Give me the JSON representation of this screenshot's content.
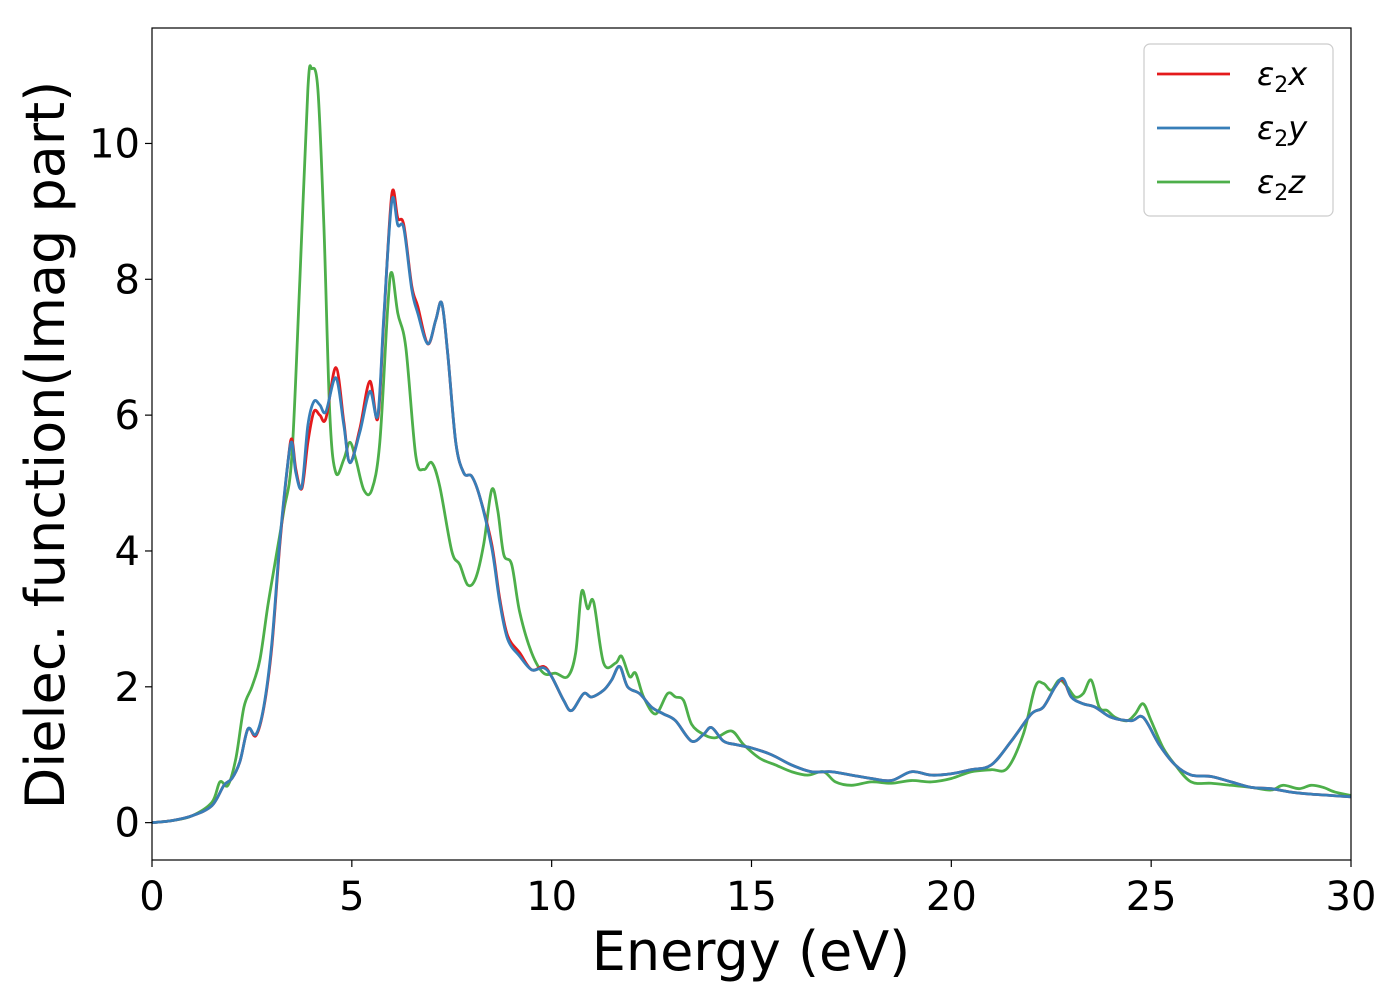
{
  "chart_data": {
    "type": "line",
    "title": "",
    "xlabel": "Energy (eV)",
    "ylabel": "Dielec. function(Imag part)",
    "xlim": [
      0,
      30
    ],
    "ylim": [
      -0.55,
      11.7
    ],
    "grid": false,
    "legend_position": "top-right",
    "x_ticks": [
      0,
      5,
      10,
      15,
      20,
      25,
      30
    ],
    "y_ticks": [
      0,
      2,
      4,
      6,
      8,
      10
    ],
    "series": [
      {
        "name": "ε₂x",
        "legend_main": "ε",
        "legend_sub": "2",
        "legend_tail": "x",
        "color": "#e41a1c",
        "points": [
          [
            0,
            0
          ],
          [
            0.5,
            0.03
          ],
          [
            1.0,
            0.1
          ],
          [
            1.5,
            0.25
          ],
          [
            1.8,
            0.55
          ],
          [
            2.0,
            0.65
          ],
          [
            2.2,
            0.9
          ],
          [
            2.4,
            1.38
          ],
          [
            2.6,
            1.28
          ],
          [
            2.8,
            1.7
          ],
          [
            3.0,
            2.6
          ],
          [
            3.2,
            4.1
          ],
          [
            3.4,
            5.3
          ],
          [
            3.5,
            5.65
          ],
          [
            3.6,
            5.2
          ],
          [
            3.75,
            4.92
          ],
          [
            3.9,
            5.6
          ],
          [
            4.05,
            6.05
          ],
          [
            4.2,
            6.0
          ],
          [
            4.35,
            5.95
          ],
          [
            4.6,
            6.7
          ],
          [
            4.8,
            5.9
          ],
          [
            4.95,
            5.3
          ],
          [
            5.2,
            5.8
          ],
          [
            5.45,
            6.5
          ],
          [
            5.65,
            5.95
          ],
          [
            5.8,
            7.4
          ],
          [
            6.0,
            9.25
          ],
          [
            6.15,
            8.9
          ],
          [
            6.3,
            8.8
          ],
          [
            6.5,
            7.9
          ],
          [
            6.65,
            7.6
          ],
          [
            6.9,
            7.05
          ],
          [
            7.1,
            7.4
          ],
          [
            7.25,
            7.65
          ],
          [
            7.4,
            6.9
          ],
          [
            7.6,
            5.6
          ],
          [
            7.8,
            5.15
          ],
          [
            8.0,
            5.1
          ],
          [
            8.2,
            4.8
          ],
          [
            8.5,
            4.1
          ],
          [
            8.7,
            3.3
          ],
          [
            8.9,
            2.75
          ],
          [
            9.2,
            2.5
          ],
          [
            9.5,
            2.25
          ],
          [
            9.8,
            2.3
          ],
          [
            10.0,
            2.15
          ],
          [
            10.3,
            1.8
          ],
          [
            10.5,
            1.65
          ],
          [
            10.8,
            1.9
          ],
          [
            11.0,
            1.85
          ],
          [
            11.3,
            1.95
          ],
          [
            11.5,
            2.1
          ],
          [
            11.7,
            2.3
          ],
          [
            11.9,
            2.0
          ],
          [
            12.2,
            1.9
          ],
          [
            12.5,
            1.7
          ],
          [
            12.8,
            1.6
          ],
          [
            13.1,
            1.5
          ],
          [
            13.5,
            1.2
          ],
          [
            13.8,
            1.3
          ],
          [
            14.0,
            1.4
          ],
          [
            14.3,
            1.2
          ],
          [
            14.6,
            1.15
          ],
          [
            15.0,
            1.1
          ],
          [
            15.5,
            1.0
          ],
          [
            16.0,
            0.85
          ],
          [
            16.5,
            0.75
          ],
          [
            17.0,
            0.75
          ],
          [
            17.5,
            0.7
          ],
          [
            18.0,
            0.65
          ],
          [
            18.5,
            0.62
          ],
          [
            19.0,
            0.75
          ],
          [
            19.5,
            0.7
          ],
          [
            20.0,
            0.72
          ],
          [
            20.5,
            0.78
          ],
          [
            21.0,
            0.85
          ],
          [
            21.5,
            1.2
          ],
          [
            22.0,
            1.6
          ],
          [
            22.3,
            1.7
          ],
          [
            22.6,
            2.0
          ],
          [
            22.8,
            2.1
          ],
          [
            23.0,
            1.85
          ],
          [
            23.3,
            1.75
          ],
          [
            23.6,
            1.7
          ],
          [
            24.0,
            1.55
          ],
          [
            24.5,
            1.5
          ],
          [
            24.8,
            1.55
          ],
          [
            25.2,
            1.15
          ],
          [
            25.6,
            0.85
          ],
          [
            26.0,
            0.7
          ],
          [
            26.5,
            0.68
          ],
          [
            27.0,
            0.6
          ],
          [
            27.5,
            0.52
          ],
          [
            28.0,
            0.5
          ],
          [
            28.5,
            0.45
          ],
          [
            29.0,
            0.42
          ],
          [
            29.5,
            0.4
          ],
          [
            30.0,
            0.38
          ]
        ]
      },
      {
        "name": "ε₂y",
        "legend_main": "ε",
        "legend_sub": "2",
        "legend_tail": "y",
        "color": "#377eb8",
        "points": [
          [
            0,
            0
          ],
          [
            0.5,
            0.03
          ],
          [
            1.0,
            0.1
          ],
          [
            1.5,
            0.25
          ],
          [
            1.8,
            0.55
          ],
          [
            2.0,
            0.65
          ],
          [
            2.2,
            0.9
          ],
          [
            2.4,
            1.38
          ],
          [
            2.6,
            1.3
          ],
          [
            2.8,
            1.72
          ],
          [
            3.0,
            2.65
          ],
          [
            3.2,
            4.15
          ],
          [
            3.4,
            5.3
          ],
          [
            3.5,
            5.6
          ],
          [
            3.6,
            5.15
          ],
          [
            3.75,
            4.95
          ],
          [
            3.9,
            5.85
          ],
          [
            4.05,
            6.2
          ],
          [
            4.2,
            6.15
          ],
          [
            4.35,
            6.05
          ],
          [
            4.6,
            6.55
          ],
          [
            4.8,
            5.85
          ],
          [
            4.95,
            5.3
          ],
          [
            5.2,
            5.75
          ],
          [
            5.45,
            6.35
          ],
          [
            5.65,
            6.0
          ],
          [
            5.8,
            7.45
          ],
          [
            6.0,
            9.15
          ],
          [
            6.15,
            8.8
          ],
          [
            6.3,
            8.75
          ],
          [
            6.5,
            7.85
          ],
          [
            6.65,
            7.5
          ],
          [
            6.9,
            7.05
          ],
          [
            7.1,
            7.4
          ],
          [
            7.25,
            7.65
          ],
          [
            7.4,
            6.9
          ],
          [
            7.6,
            5.6
          ],
          [
            7.8,
            5.15
          ],
          [
            8.0,
            5.1
          ],
          [
            8.2,
            4.8
          ],
          [
            8.5,
            4.05
          ],
          [
            8.7,
            3.25
          ],
          [
            8.9,
            2.7
          ],
          [
            9.2,
            2.45
          ],
          [
            9.5,
            2.25
          ],
          [
            9.8,
            2.28
          ],
          [
            10.0,
            2.15
          ],
          [
            10.3,
            1.8
          ],
          [
            10.5,
            1.65
          ],
          [
            10.8,
            1.9
          ],
          [
            11.0,
            1.85
          ],
          [
            11.3,
            1.95
          ],
          [
            11.5,
            2.1
          ],
          [
            11.7,
            2.3
          ],
          [
            11.9,
            2.0
          ],
          [
            12.2,
            1.9
          ],
          [
            12.5,
            1.7
          ],
          [
            12.8,
            1.6
          ],
          [
            13.1,
            1.5
          ],
          [
            13.5,
            1.2
          ],
          [
            13.8,
            1.3
          ],
          [
            14.0,
            1.4
          ],
          [
            14.3,
            1.2
          ],
          [
            14.6,
            1.15
          ],
          [
            15.0,
            1.1
          ],
          [
            15.5,
            1.0
          ],
          [
            16.0,
            0.85
          ],
          [
            16.5,
            0.75
          ],
          [
            17.0,
            0.75
          ],
          [
            17.5,
            0.7
          ],
          [
            18.0,
            0.65
          ],
          [
            18.5,
            0.62
          ],
          [
            19.0,
            0.75
          ],
          [
            19.5,
            0.7
          ],
          [
            20.0,
            0.72
          ],
          [
            20.5,
            0.78
          ],
          [
            21.0,
            0.85
          ],
          [
            21.5,
            1.2
          ],
          [
            22.0,
            1.6
          ],
          [
            22.3,
            1.7
          ],
          [
            22.6,
            2.0
          ],
          [
            22.8,
            2.12
          ],
          [
            23.0,
            1.85
          ],
          [
            23.3,
            1.75
          ],
          [
            23.6,
            1.7
          ],
          [
            24.0,
            1.55
          ],
          [
            24.5,
            1.5
          ],
          [
            24.8,
            1.55
          ],
          [
            25.2,
            1.15
          ],
          [
            25.6,
            0.85
          ],
          [
            26.0,
            0.7
          ],
          [
            26.5,
            0.68
          ],
          [
            27.0,
            0.6
          ],
          [
            27.5,
            0.52
          ],
          [
            28.0,
            0.5
          ],
          [
            28.5,
            0.45
          ],
          [
            29.0,
            0.42
          ],
          [
            29.5,
            0.4
          ],
          [
            30.0,
            0.38
          ]
        ]
      },
      {
        "name": "ε₂z",
        "legend_main": "ε",
        "legend_sub": "2",
        "legend_tail": "z",
        "color": "#4daf4a",
        "points": [
          [
            0,
            0
          ],
          [
            0.5,
            0.03
          ],
          [
            1.0,
            0.1
          ],
          [
            1.5,
            0.3
          ],
          [
            1.7,
            0.6
          ],
          [
            1.9,
            0.55
          ],
          [
            2.1,
            0.95
          ],
          [
            2.3,
            1.7
          ],
          [
            2.5,
            2.0
          ],
          [
            2.7,
            2.4
          ],
          [
            2.9,
            3.2
          ],
          [
            3.1,
            3.9
          ],
          [
            3.3,
            4.6
          ],
          [
            3.5,
            5.4
          ],
          [
            3.7,
            8.0
          ],
          [
            3.9,
            10.8
          ],
          [
            4.0,
            11.1
          ],
          [
            4.15,
            10.8
          ],
          [
            4.3,
            8.8
          ],
          [
            4.45,
            6.0
          ],
          [
            4.6,
            5.15
          ],
          [
            4.8,
            5.35
          ],
          [
            4.95,
            5.6
          ],
          [
            5.1,
            5.35
          ],
          [
            5.3,
            4.9
          ],
          [
            5.5,
            4.9
          ],
          [
            5.7,
            5.6
          ],
          [
            5.9,
            7.6
          ],
          [
            6.0,
            8.1
          ],
          [
            6.15,
            7.5
          ],
          [
            6.35,
            7.0
          ],
          [
            6.6,
            5.4
          ],
          [
            6.8,
            5.2
          ],
          [
            7.0,
            5.3
          ],
          [
            7.2,
            4.95
          ],
          [
            7.5,
            4.0
          ],
          [
            7.7,
            3.8
          ],
          [
            7.9,
            3.5
          ],
          [
            8.1,
            3.6
          ],
          [
            8.3,
            4.1
          ],
          [
            8.5,
            4.9
          ],
          [
            8.65,
            4.6
          ],
          [
            8.8,
            3.95
          ],
          [
            9.0,
            3.8
          ],
          [
            9.2,
            3.1
          ],
          [
            9.5,
            2.5
          ],
          [
            9.8,
            2.2
          ],
          [
            10.1,
            2.2
          ],
          [
            10.4,
            2.15
          ],
          [
            10.6,
            2.5
          ],
          [
            10.75,
            3.4
          ],
          [
            10.9,
            3.15
          ],
          [
            11.05,
            3.25
          ],
          [
            11.3,
            2.35
          ],
          [
            11.6,
            2.35
          ],
          [
            11.75,
            2.45
          ],
          [
            11.95,
            2.15
          ],
          [
            12.1,
            2.2
          ],
          [
            12.3,
            1.85
          ],
          [
            12.6,
            1.6
          ],
          [
            12.9,
            1.9
          ],
          [
            13.1,
            1.85
          ],
          [
            13.3,
            1.8
          ],
          [
            13.5,
            1.45
          ],
          [
            13.8,
            1.3
          ],
          [
            14.1,
            1.25
          ],
          [
            14.5,
            1.35
          ],
          [
            14.8,
            1.15
          ],
          [
            15.2,
            0.95
          ],
          [
            15.6,
            0.85
          ],
          [
            16.0,
            0.75
          ],
          [
            16.4,
            0.7
          ],
          [
            16.8,
            0.75
          ],
          [
            17.1,
            0.6
          ],
          [
            17.5,
            0.55
          ],
          [
            18.0,
            0.6
          ],
          [
            18.5,
            0.58
          ],
          [
            19.0,
            0.62
          ],
          [
            19.5,
            0.6
          ],
          [
            20.0,
            0.65
          ],
          [
            20.5,
            0.75
          ],
          [
            21.0,
            0.78
          ],
          [
            21.4,
            0.8
          ],
          [
            21.8,
            1.3
          ],
          [
            22.1,
            2.0
          ],
          [
            22.3,
            2.05
          ],
          [
            22.5,
            1.95
          ],
          [
            22.7,
            2.1
          ],
          [
            22.9,
            2.0
          ],
          [
            23.1,
            1.85
          ],
          [
            23.3,
            1.9
          ],
          [
            23.5,
            2.1
          ],
          [
            23.7,
            1.7
          ],
          [
            23.9,
            1.65
          ],
          [
            24.1,
            1.55
          ],
          [
            24.4,
            1.5
          ],
          [
            24.6,
            1.6
          ],
          [
            24.8,
            1.75
          ],
          [
            25.0,
            1.5
          ],
          [
            25.3,
            1.1
          ],
          [
            25.6,
            0.85
          ],
          [
            26.0,
            0.6
          ],
          [
            26.5,
            0.58
          ],
          [
            27.0,
            0.55
          ],
          [
            27.5,
            0.52
          ],
          [
            28.0,
            0.48
          ],
          [
            28.3,
            0.55
          ],
          [
            28.7,
            0.5
          ],
          [
            29.0,
            0.55
          ],
          [
            29.3,
            0.52
          ],
          [
            29.6,
            0.45
          ],
          [
            30.0,
            0.4
          ]
        ]
      }
    ]
  }
}
